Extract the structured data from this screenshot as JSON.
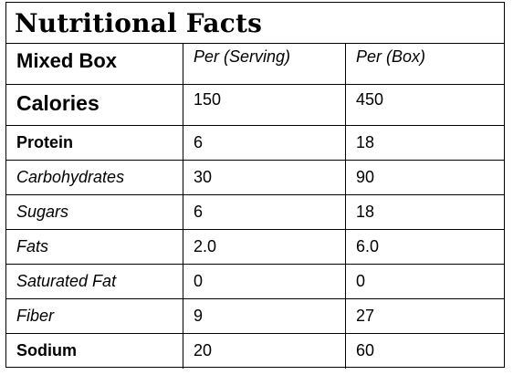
{
  "title": "Nutritional Facts",
  "header": {
    "label": "Mixed Box",
    "col_serving": "Per (Serving)",
    "col_box": "Per (Box)"
  },
  "rows": [
    {
      "name": "Calories",
      "serving": "150",
      "box": "450"
    },
    {
      "name": "Protein",
      "serving": "6",
      "box": "18"
    },
    {
      "name": "Carbohydrates",
      "serving": "30",
      "box": "90"
    },
    {
      "name": "Sugars",
      "serving": "6",
      "box": "18"
    },
    {
      "name": "Fats",
      "serving": "2.0",
      "box": "6.0"
    },
    {
      "name": "Saturated Fat",
      "serving": "0",
      "box": "0"
    },
    {
      "name": "Fiber",
      "serving": "9",
      "box": "27"
    },
    {
      "name": "Sodium",
      "serving": "20",
      "box": "60"
    }
  ]
}
